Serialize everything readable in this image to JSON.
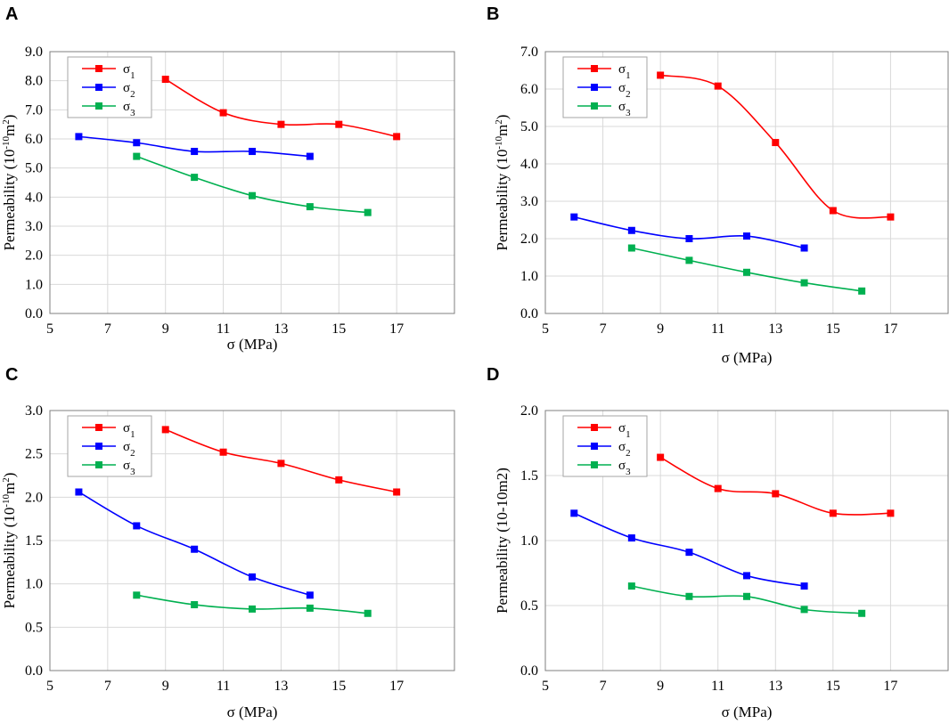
{
  "chart_data": [
    {
      "panel": "A",
      "type": "line",
      "xlabel": "σ (MPa)",
      "ylabel": "Permeability (10-10m2)",
      "ylabel_parts": {
        "base": "Permeability (10",
        "sup1": "-10",
        "mid": "m",
        "sup2": "2",
        "end": ")"
      },
      "xlim": [
        5,
        19
      ],
      "ylim": [
        0,
        9
      ],
      "xticks": [
        "5",
        "7",
        "9",
        "11",
        "13",
        "15",
        "17"
      ],
      "yticks": [
        "0.0",
        "1.0",
        "2.0",
        "3.0",
        "4.0",
        "5.0",
        "6.0",
        "7.0",
        "8.0",
        "9.0"
      ],
      "series": [
        {
          "name": "σ1",
          "label_base": "σ",
          "label_sub": "1",
          "color": "#ff0000",
          "x": [
            9,
            11,
            13,
            15,
            17
          ],
          "y": [
            8.05,
            6.9,
            6.5,
            6.5,
            6.08
          ]
        },
        {
          "name": "σ2",
          "label_base": "σ",
          "label_sub": "2",
          "color": "#0000ff",
          "x": [
            6,
            8,
            10,
            12,
            14
          ],
          "y": [
            6.08,
            5.87,
            5.57,
            5.57,
            5.4
          ]
        },
        {
          "name": "σ3",
          "label_base": "σ",
          "label_sub": "3",
          "color": "#00b050",
          "x": [
            8,
            10,
            12,
            14,
            16
          ],
          "y": [
            5.4,
            4.68,
            4.05,
            3.67,
            3.47
          ]
        }
      ]
    },
    {
      "panel": "B",
      "type": "line",
      "xlabel": "σ (MPa)",
      "ylabel": "Permeability (10-10m2)",
      "ylabel_parts": {
        "base": "Permeability (10",
        "sup1": "-10",
        "mid": "m",
        "sup2": "2",
        "end": ")"
      },
      "xlim": [
        5,
        19
      ],
      "ylim": [
        0,
        7
      ],
      "xticks": [
        "5",
        "7",
        "9",
        "11",
        "13",
        "15",
        "17"
      ],
      "yticks": [
        "0.0",
        "1.0",
        "2.0",
        "3.0",
        "4.0",
        "5.0",
        "6.0",
        "7.0"
      ],
      "series": [
        {
          "name": "σ1",
          "label_base": "σ",
          "label_sub": "1",
          "color": "#ff0000",
          "x": [
            9,
            11,
            13,
            15,
            17
          ],
          "y": [
            6.37,
            6.08,
            4.57,
            2.75,
            2.58
          ]
        },
        {
          "name": "σ2",
          "label_base": "σ",
          "label_sub": "2",
          "color": "#0000ff",
          "x": [
            6,
            8,
            10,
            12,
            14
          ],
          "y": [
            2.58,
            2.22,
            2.0,
            2.07,
            1.75
          ]
        },
        {
          "name": "σ3",
          "label_base": "σ",
          "label_sub": "3",
          "color": "#00b050",
          "x": [
            8,
            10,
            12,
            14,
            16
          ],
          "y": [
            1.75,
            1.42,
            1.1,
            0.82,
            0.6
          ]
        }
      ]
    },
    {
      "panel": "C",
      "type": "line",
      "xlabel": "σ (MPa)",
      "ylabel": "Permeability (10-10m2)",
      "ylabel_parts": {
        "base": "Permeability (10",
        "sup1": "-10",
        "mid": "m",
        "sup2": "2",
        "end": ")"
      },
      "xlim": [
        5,
        19
      ],
      "ylim": [
        0,
        3
      ],
      "xticks": [
        "5",
        "7",
        "9",
        "11",
        "13",
        "15",
        "17"
      ],
      "yticks": [
        "0.0",
        "0.5",
        "1.0",
        "1.5",
        "2.0",
        "2.5",
        "3.0"
      ],
      "series": [
        {
          "name": "σ1",
          "label_base": "σ",
          "label_sub": "1",
          "color": "#ff0000",
          "x": [
            9,
            11,
            13,
            15,
            17
          ],
          "y": [
            2.78,
            2.52,
            2.39,
            2.2,
            2.06
          ]
        },
        {
          "name": "σ2",
          "label_base": "σ",
          "label_sub": "2",
          "color": "#0000ff",
          "x": [
            6,
            8,
            10,
            12,
            14
          ],
          "y": [
            2.06,
            1.67,
            1.4,
            1.08,
            0.87
          ]
        },
        {
          "name": "σ3",
          "label_base": "σ",
          "label_sub": "3",
          "color": "#00b050",
          "x": [
            8,
            10,
            12,
            14,
            16
          ],
          "y": [
            0.87,
            0.76,
            0.71,
            0.72,
            0.66
          ]
        }
      ]
    },
    {
      "panel": "D",
      "type": "line",
      "xlabel": "σ (MPa)",
      "ylabel": "Permeability (10-10m2)",
      "ylabel_parts": {
        "base": "Permeability (10-10m2)",
        "sup1": "",
        "mid": "",
        "sup2": "",
        "end": ""
      },
      "xlim": [
        5,
        19
      ],
      "ylim": [
        0,
        2
      ],
      "xticks": [
        "5",
        "7",
        "9",
        "11",
        "13",
        "15",
        "17"
      ],
      "yticks": [
        "0.0",
        "0.5",
        "1.0",
        "1.5",
        "2.0"
      ],
      "series": [
        {
          "name": "σ1",
          "label_base": "σ",
          "label_sub": "1",
          "color": "#ff0000",
          "x": [
            9,
            11,
            13,
            15,
            17
          ],
          "y": [
            1.64,
            1.4,
            1.36,
            1.21,
            1.21
          ]
        },
        {
          "name": "σ2",
          "label_base": "σ",
          "label_sub": "2",
          "color": "#0000ff",
          "x": [
            6,
            8,
            10,
            12,
            14
          ],
          "y": [
            1.21,
            1.02,
            0.91,
            0.73,
            0.65
          ]
        },
        {
          "name": "σ3",
          "label_base": "σ",
          "label_sub": "3",
          "color": "#00b050",
          "x": [
            8,
            10,
            12,
            14,
            16
          ],
          "y": [
            0.65,
            0.57,
            0.57,
            0.47,
            0.44
          ]
        }
      ]
    }
  ]
}
